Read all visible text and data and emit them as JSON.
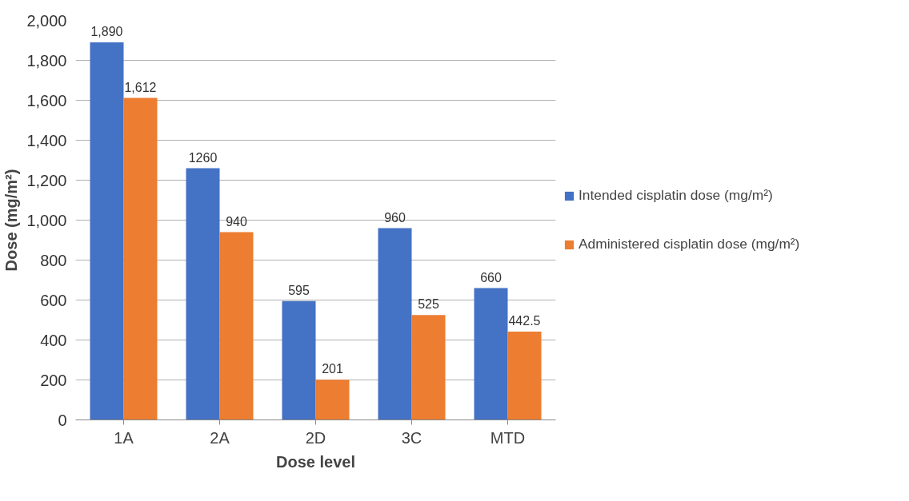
{
  "chart_data": {
    "type": "bar",
    "xlabel": "Dose level",
    "ylabel": "Dose (mg/m²)",
    "categories": [
      "1A",
      "2A",
      "2D",
      "3C",
      "MTD"
    ],
    "series": [
      {
        "name": "Intended cisplatin dose (mg/m²)",
        "color": "#4472c4",
        "values": [
          1890,
          1260,
          595,
          960,
          660
        ],
        "value_labels": [
          "1,890",
          "1260",
          "595",
          "960",
          "660"
        ]
      },
      {
        "name": "Administered cisplatin dose (mg/m²)",
        "color": "#ed7d31",
        "values": [
          1612,
          940,
          201,
          525,
          442.5
        ],
        "value_labels": [
          "1,612",
          "940",
          "201",
          "525",
          "442.5"
        ]
      }
    ],
    "ylim": [
      0,
      2000
    ],
    "yticks": [
      {
        "value": 0,
        "label": "0"
      },
      {
        "value": 200,
        "label": "200"
      },
      {
        "value": 400,
        "label": "400"
      },
      {
        "value": 600,
        "label": "600"
      },
      {
        "value": 800,
        "label": "800"
      },
      {
        "value": 1000,
        "label": "1,000"
      },
      {
        "value": 1200,
        "label": "1,200"
      },
      {
        "value": 1400,
        "label": "1,400"
      },
      {
        "value": 1600,
        "label": "1,600"
      },
      {
        "value": 1800,
        "label": "1,800"
      },
      {
        "value": 2000,
        "label": "2,000"
      }
    ],
    "grid": "y",
    "legend": "right"
  }
}
